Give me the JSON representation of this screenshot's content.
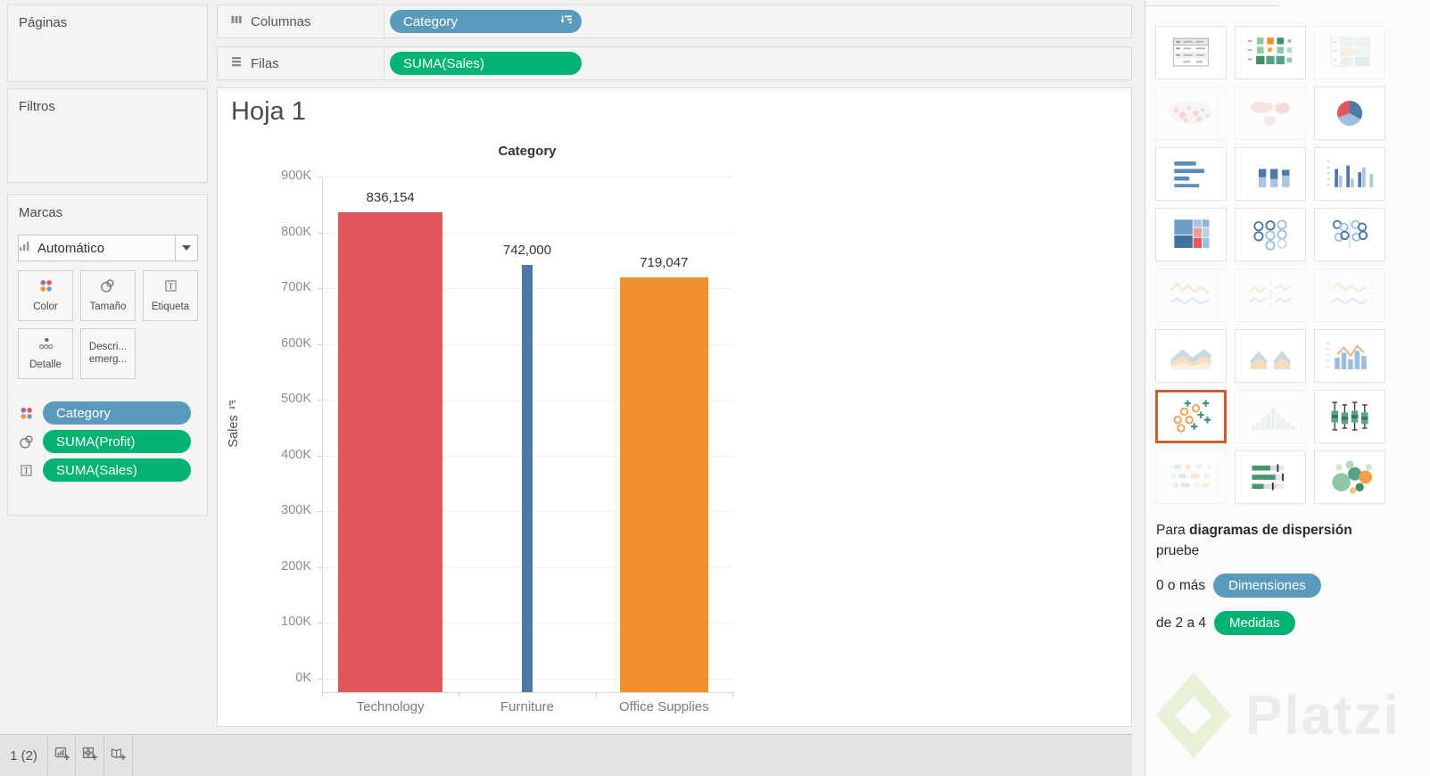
{
  "colors": {
    "dimension_pill": "#5a9bbd",
    "measure_pill": "#00b373",
    "selected_border": "#c95f2a"
  },
  "sidebar": {
    "pages_title": "Páginas",
    "filters_title": "Filtros",
    "marks": {
      "title": "Marcas",
      "mark_type": "Automático",
      "mark_type_icon": "barchart-icon",
      "buttons": [
        {
          "icon": "color-icon",
          "label": "Color"
        },
        {
          "icon": "size-icon",
          "label": "Tamaño"
        },
        {
          "icon": "label-icon",
          "label": "Etiqueta"
        },
        {
          "icon": "detail-icon",
          "label": "Detalle"
        },
        {
          "icon": "tooltip-icon",
          "label": "Descri...",
          "label2": "emerg..."
        }
      ],
      "pills": [
        {
          "icon": "color-icon",
          "label": "Category",
          "type": "dimension"
        },
        {
          "icon": "size-icon",
          "label": "SUMA(Profit)",
          "type": "measure"
        },
        {
          "icon": "label-icon",
          "label": "SUMA(Sales)",
          "type": "measure"
        }
      ]
    }
  },
  "shelves": {
    "columns": {
      "label": "Columnas",
      "icon": "columns-icon",
      "pills": [
        {
          "label": "Category",
          "type": "dimension",
          "sort_icon": true
        }
      ]
    },
    "rows": {
      "label": "Filas",
      "icon": "rows-icon",
      "pills": [
        {
          "label": "SUMA(Sales)",
          "type": "measure",
          "sort_icon": false
        }
      ]
    }
  },
  "sheet": {
    "title": "Hoja 1"
  },
  "chart_data": {
    "type": "bar",
    "title": "Category",
    "categories": [
      "Technology",
      "Furniture",
      "Office Supplies"
    ],
    "values": [
      836154,
      742000,
      719047
    ],
    "value_labels": [
      "836,154",
      "742,000",
      "719,047"
    ],
    "bar_colors": [
      "#e15759",
      "#4e79a7",
      "#f28e2b"
    ],
    "size_weights": [
      1.0,
      0.095,
      0.846
    ],
    "size_encoding": "SUMA(Profit)",
    "xlabel": "Category",
    "ylabel": "Sales",
    "ylabel_sorted": true,
    "ylim": [
      0,
      900000
    ],
    "ytick_step": 100000,
    "ytick_labels": [
      "0K",
      "100K",
      "200K",
      "300K",
      "400K",
      "500K",
      "600K",
      "700K",
      "800K",
      "900K"
    ],
    "grid": true,
    "legend_position": "none",
    "sorted_desc": true
  },
  "showme": {
    "items": [
      {
        "name": "text-table",
        "state": "normal"
      },
      {
        "name": "heatmap",
        "state": "normal"
      },
      {
        "name": "highlight-table",
        "state": "faded"
      },
      {
        "name": "symbol-map",
        "state": "faded"
      },
      {
        "name": "filled-map",
        "state": "faded"
      },
      {
        "name": "pie-chart",
        "state": "normal"
      },
      {
        "name": "horizontal-bars",
        "state": "normal"
      },
      {
        "name": "stacked-bars",
        "state": "normal"
      },
      {
        "name": "side-by-side-bars",
        "state": "normal"
      },
      {
        "name": "treemap",
        "state": "normal"
      },
      {
        "name": "circle-views",
        "state": "normal"
      },
      {
        "name": "side-by-side-circles",
        "state": "normal"
      },
      {
        "name": "lines-continuous",
        "state": "faded"
      },
      {
        "name": "lines-discrete",
        "state": "faded"
      },
      {
        "name": "dual-lines",
        "state": "faded"
      },
      {
        "name": "area-continuous",
        "state": "normal"
      },
      {
        "name": "area-discrete",
        "state": "normal"
      },
      {
        "name": "dual-combination",
        "state": "normal"
      },
      {
        "name": "scatter-plot",
        "state": "selected"
      },
      {
        "name": "histogram",
        "state": "faded"
      },
      {
        "name": "box-and-whisker",
        "state": "normal"
      },
      {
        "name": "gantt",
        "state": "faded"
      },
      {
        "name": "bullet-graph",
        "state": "normal"
      },
      {
        "name": "packed-bubbles",
        "state": "normal"
      }
    ],
    "hint": {
      "prefix": "Para ",
      "bold": "diagramas de dispersión",
      "suffix": "pruebe"
    },
    "req1": {
      "text": "0 o más",
      "pill": "Dimensiones",
      "pill_type": "dimension"
    },
    "req2": {
      "text": "de 2 a 4",
      "pill": "Medidas",
      "pill_type": "measure"
    }
  },
  "statusbar": {
    "tab_label": "1 (2)",
    "icons": [
      "new-worksheet-icon",
      "new-dashboard-icon",
      "new-story-icon"
    ]
  },
  "watermark": {
    "text": "Platzi"
  }
}
